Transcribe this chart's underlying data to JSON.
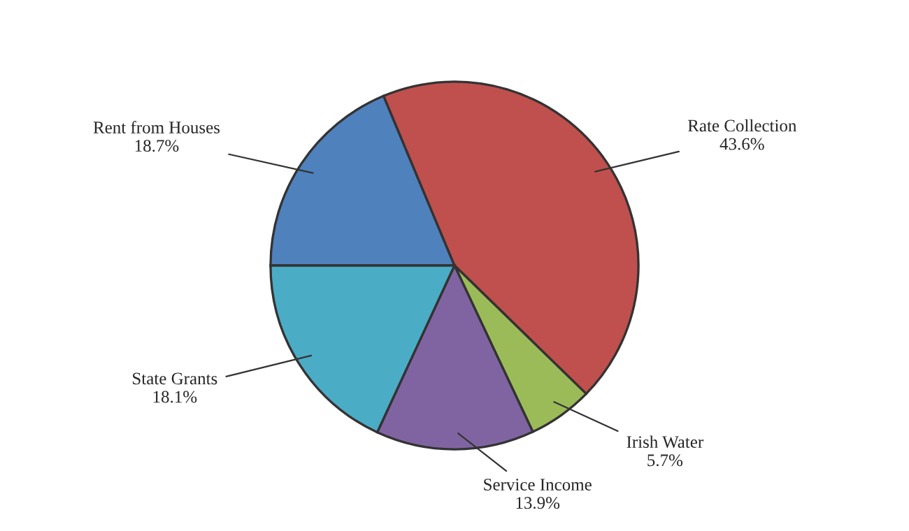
{
  "chart_data": {
    "type": "pie",
    "categories": [
      "Rent from Houses",
      "Rate Collection",
      "Irish Water",
      "Service Income",
      "State Grants"
    ],
    "values": [
      18.7,
      43.6,
      5.7,
      13.9,
      18.1
    ],
    "value_labels": [
      "18.7%",
      "43.6%",
      "5.7%",
      "13.9%",
      "18.1%"
    ],
    "colors": [
      "#4f81bd",
      "#c0504d",
      "#9bbb59",
      "#8064a2",
      "#4bacc6"
    ]
  }
}
